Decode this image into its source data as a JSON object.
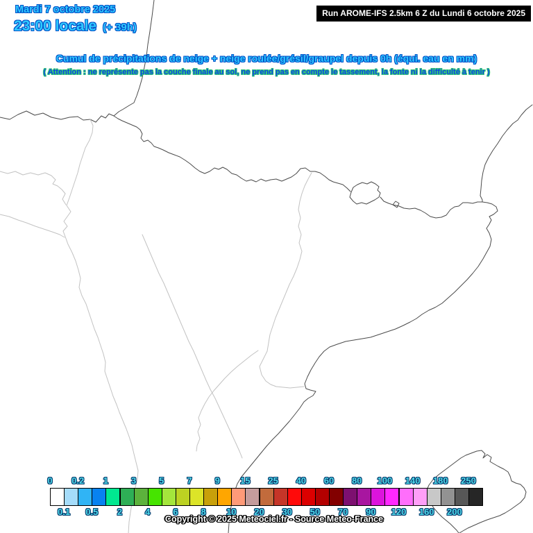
{
  "header": {
    "date": "Mardi 7 octobre 2025",
    "time": "23:00 locale",
    "offset": "(+ 39h)",
    "run": "Run AROME-IFS 2.5km 6 Z du Lundi 6 octobre 2025"
  },
  "title": "Cumul de précipitations de neige + neige roulée/grésil/graupel depuis 0h (équi. eau en mm)",
  "warning": "( Attention : ne représente pas la couche finale au sol, ne prend pas en compte le tassement, la fonte ni la difficulté à tenir )",
  "legend": {
    "unit": "mm",
    "stops": [
      {
        "label": "0",
        "color": "#FFFFFF"
      },
      {
        "label": "0.1",
        "color": "#A5DCFA"
      },
      {
        "label": "0.2",
        "color": "#30B4F5"
      },
      {
        "label": "0.5",
        "color": "#0882F0"
      },
      {
        "label": "1",
        "color": "#00E890"
      },
      {
        "label": "2",
        "color": "#2EAF56"
      },
      {
        "label": "3",
        "color": "#5CB23C"
      },
      {
        "label": "4",
        "color": "#46E400"
      },
      {
        "label": "5",
        "color": "#A4E63C"
      },
      {
        "label": "6",
        "color": "#BCD222"
      },
      {
        "label": "7",
        "color": "#DCE428"
      },
      {
        "label": "8",
        "color": "#C8A00A"
      },
      {
        "label": "9",
        "color": "#FFA600"
      },
      {
        "label": "10",
        "color": "#FF9A78"
      },
      {
        "label": "15",
        "color": "#C49C9C"
      },
      {
        "label": "20",
        "color": "#C26B3C"
      },
      {
        "label": "25",
        "color": "#C63528"
      },
      {
        "label": "30",
        "color": "#FF0A0A"
      },
      {
        "label": "40",
        "color": "#DC0000"
      },
      {
        "label": "50",
        "color": "#B40000"
      },
      {
        "label": "60",
        "color": "#820000"
      },
      {
        "label": "70",
        "color": "#7D1070"
      },
      {
        "label": "80",
        "color": "#A816A0"
      },
      {
        "label": "90",
        "color": "#DC14DC"
      },
      {
        "label": "100",
        "color": "#FF28FF"
      },
      {
        "label": "120",
        "color": "#FF6EFB"
      },
      {
        "label": "140",
        "color": "#FF9FF8"
      },
      {
        "label": "160",
        "color": "#C8C8C8"
      },
      {
        "label": "180",
        "color": "#929292"
      },
      {
        "label": "200",
        "color": "#575757"
      },
      {
        "label": "250",
        "color": "#262626"
      }
    ]
  },
  "footer": {
    "copyright": "Copyright © 2025 Meteociel.fr - Source Meteo-France"
  },
  "colors": {
    "background": "#FFFFFF",
    "header_text": "#2FC8FF",
    "header_outline": "#0050C8",
    "warning_text": "#0A46E6",
    "warning_outline": "#37C878",
    "legend_label": "#4FD9E9",
    "legend_label_outline": "#083C6E",
    "run_bg": "#000000",
    "run_text": "#FFFFFF",
    "copyright_text": "#FFFFFF",
    "copyright_outline": "#000000",
    "coast_line": "#4A4A4A",
    "region_line": "#C2C2C2"
  }
}
